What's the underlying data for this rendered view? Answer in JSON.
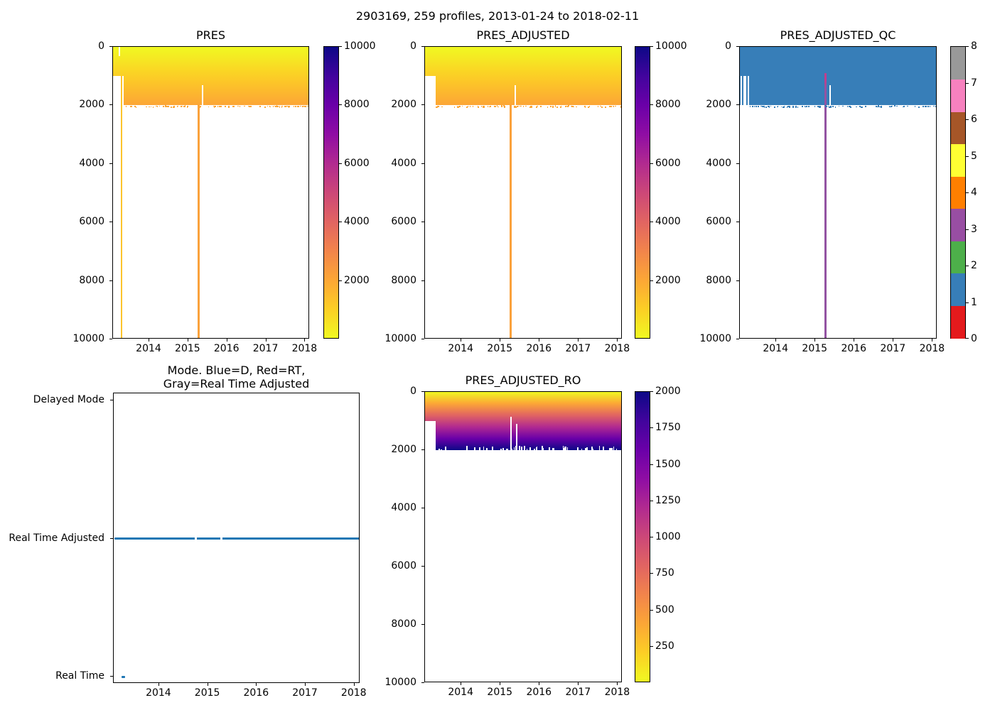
{
  "suptitle": "2903169, 259 profiles, 2013-01-24 to 2018-02-11",
  "panels": {
    "pres": {
      "title": "PRES"
    },
    "pres_adjusted": {
      "title": "PRES_ADJUSTED"
    },
    "pres_adjusted_qc": {
      "title": "PRES_ADJUSTED_QC"
    },
    "mode": {
      "title_line1": "Mode. Blue=D, Red=RT,",
      "title_line2": "Gray=Real Time Adjusted"
    },
    "pres_adjusted_ro": {
      "title": "PRES_ADJUSTED_RO"
    }
  },
  "colors": {
    "plasma_r_stops": [
      "#f0f921",
      "#fcce25",
      "#fca636",
      "#f2844b",
      "#e16462",
      "#cc4778",
      "#b12a90",
      "#8f0da4",
      "#6a00a8",
      "#41049d",
      "#0d0887"
    ],
    "qc_palette": [
      "#e41a1c",
      "#377eb8",
      "#4daf4a",
      "#984ea3",
      "#ff7f00",
      "#ffff33",
      "#a65628",
      "#f781bf",
      "#999999"
    ],
    "qc_fill": "#377eb8",
    "mode_line": "#1f77b4",
    "deep_spike_orange": "#fba23c",
    "deep_spike_yellow": "#fcc42c",
    "qc_spike": "#9353a2",
    "qc_spike_top": "#bf3f8d",
    "background": "#ffffff",
    "text": "#000000"
  },
  "chart_data": [
    {
      "id": "pres",
      "type": "heatmap",
      "title": "PRES",
      "x_range": [
        2013.07,
        2018.12
      ],
      "x_ticks": [
        2014,
        2015,
        2016,
        2017,
        2018
      ],
      "y_range": [
        0,
        10000
      ],
      "y_ticks": [
        0,
        2000,
        4000,
        6000,
        8000,
        10000
      ],
      "colormap": "plasma_r",
      "clim": [
        0,
        10000
      ],
      "colorbar_ticks": [
        2000,
        4000,
        6000,
        8000,
        10000
      ],
      "band": {
        "depth_top": 0,
        "depth_bottom": 2000,
        "value_top": 0,
        "value_bottom": 2000
      },
      "shallow_start": {
        "t_start": 2013.07,
        "t_end": 2013.34,
        "max_depth": 1000
      },
      "spikes": [
        {
          "t": 2013.29,
          "depth": [
            1000,
            10000
          ],
          "color_key": "deep_spike_yellow",
          "width": 2
        },
        {
          "t": 2015.26,
          "depth": [
            2000,
            10000
          ],
          "color_key": "deep_spike_orange",
          "width": 3
        }
      ],
      "gaps": [
        {
          "t": 2013.23,
          "depth": [
            0,
            320
          ],
          "width": 1.5
        },
        {
          "t": 2015.37,
          "depth": [
            1300,
            2000
          ],
          "width": 2
        }
      ]
    },
    {
      "id": "pres_adjusted",
      "type": "heatmap",
      "title": "PRES_ADJUSTED",
      "x_range": [
        2013.07,
        2018.12
      ],
      "x_ticks": [
        2014,
        2015,
        2016,
        2017,
        2018
      ],
      "y_range": [
        0,
        10000
      ],
      "y_ticks": [
        0,
        2000,
        4000,
        6000,
        8000,
        10000
      ],
      "colormap": "plasma_r",
      "clim": [
        0,
        10000
      ],
      "colorbar_ticks": [
        2000,
        4000,
        6000,
        8000,
        10000
      ],
      "band": {
        "depth_top": 0,
        "depth_bottom": 2000,
        "value_top": 0,
        "value_bottom": 2000
      },
      "shallow_start": {
        "t_start": 2013.07,
        "t_end": 2013.34,
        "max_depth": 1000
      },
      "spikes": [
        {
          "t": 2015.26,
          "depth": [
            2000,
            10000
          ],
          "color_key": "deep_spike_orange",
          "width": 3
        }
      ],
      "gaps": [
        {
          "t": 2015.37,
          "depth": [
            1300,
            2000
          ],
          "width": 2
        }
      ]
    },
    {
      "id": "pres_adjusted_qc",
      "type": "heatmap",
      "title": "PRES_ADJUSTED_QC",
      "x_range": [
        2013.07,
        2018.12
      ],
      "x_ticks": [
        2014,
        2015,
        2016,
        2017,
        2018
      ],
      "y_range": [
        0,
        10000
      ],
      "y_ticks": [
        0,
        2000,
        4000,
        6000,
        8000,
        10000
      ],
      "colormap": "qc_flags",
      "clim": [
        0,
        8
      ],
      "colorbar_ticks": [
        0,
        1,
        2,
        3,
        4,
        5,
        6,
        7,
        8
      ],
      "band": {
        "depth_top": 0,
        "depth_bottom": 2000,
        "qc_value": 1
      },
      "shallow_start": {
        "t_start": 2013.08,
        "t_end": 2013.3,
        "max_depth": 1000
      },
      "notch_stripes": [
        {
          "t": 2013.13
        },
        {
          "t": 2013.23
        }
      ],
      "spikes": [
        {
          "t": 2015.26,
          "depth": [
            900,
            10000
          ],
          "color_key": "qc_spike",
          "width": 3
        }
      ],
      "gaps": [
        {
          "t": 2015.37,
          "depth": [
            1300,
            2000
          ],
          "width": 2
        }
      ]
    },
    {
      "id": "mode",
      "type": "line",
      "title": "Mode. Blue=D, Red=RT,\nGray=Real Time Adjusted",
      "x_range": [
        2013.07,
        2018.12
      ],
      "x_ticks": [
        2014,
        2015,
        2016,
        2017,
        2018
      ],
      "y_categories": [
        "Delayed Mode",
        "Real Time Adjusted",
        "Real Time"
      ],
      "series": [
        {
          "value": "Real Time Adjusted",
          "t_start": 2013.08,
          "t_end": 2018.11,
          "gaps_t": [
            2014.75,
            2015.27
          ]
        },
        {
          "value": "Real Time",
          "t_start": 2013.23,
          "t_end": 2013.31,
          "gaps_t": []
        }
      ]
    },
    {
      "id": "pres_adjusted_ro",
      "type": "heatmap",
      "title": "PRES_ADJUSTED_RO",
      "x_range": [
        2013.07,
        2018.12
      ],
      "x_ticks": [
        2014,
        2015,
        2016,
        2017,
        2018
      ],
      "y_range": [
        0,
        10000
      ],
      "y_ticks": [
        0,
        2000,
        4000,
        6000,
        8000,
        10000
      ],
      "colormap": "plasma_r",
      "clim": [
        0,
        2000
      ],
      "colorbar_ticks": [
        250,
        500,
        750,
        1000,
        1250,
        1500,
        1750,
        2000
      ],
      "band": {
        "depth_top": 0,
        "depth_bottom": 2000,
        "value_top": 0,
        "value_bottom": 2000
      },
      "shallow_start": {
        "t_start": 2013.07,
        "t_end": 2013.34,
        "max_depth": 1000
      },
      "spikes": [],
      "gaps": [
        {
          "t": 2015.26,
          "depth": [
            850,
            2000
          ],
          "width": 2
        },
        {
          "t": 2015.42,
          "depth": [
            1100,
            2000
          ],
          "width": 2
        }
      ],
      "ragged": "white_inward"
    }
  ]
}
